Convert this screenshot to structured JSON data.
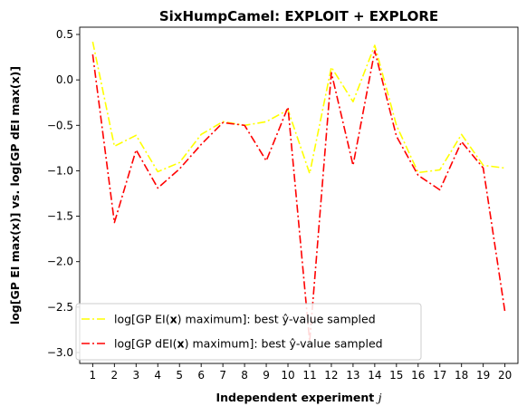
{
  "chart_data": {
    "type": "line",
    "title": "SixHumpCamel: EXPLOIT + EXPLORE",
    "xlabel": "Independent experiment j",
    "ylabel": "log[GP EI max(x)] vs. log[GP dEI max(x)]",
    "xlim": [
      0.4,
      20.6
    ],
    "ylim": [
      -3.12,
      0.58
    ],
    "xticks": [
      1,
      2,
      3,
      4,
      5,
      6,
      7,
      8,
      9,
      10,
      11,
      12,
      13,
      14,
      15,
      16,
      17,
      18,
      19,
      20
    ],
    "yticks": [
      0.5,
      0.0,
      -0.5,
      -1.0,
      -1.5,
      -2.0,
      -2.5,
      -3.0
    ],
    "ytick_labels": [
      "0.5",
      "0.0",
      "−0.5",
      "−1.0",
      "−1.5",
      "−2.0",
      "−2.5",
      "−3.0"
    ],
    "grid": false,
    "legend_position": "lower-left",
    "x": [
      1,
      2,
      3,
      4,
      5,
      6,
      7,
      8,
      9,
      10,
      11,
      12,
      13,
      14,
      15,
      16,
      17,
      18,
      19,
      20
    ],
    "series": [
      {
        "name": "log[GP EI(x) maximum]: best ŷ-value sampled",
        "color": "#ffff00",
        "style": "dashdot",
        "values": [
          0.42,
          -0.73,
          -0.61,
          -1.01,
          -0.91,
          -0.6,
          -0.46,
          -0.5,
          -0.46,
          -0.33,
          -1.03,
          0.14,
          -0.24,
          0.38,
          -0.5,
          -1.02,
          -0.99,
          -0.6,
          -0.94,
          -0.97
        ]
      },
      {
        "name": "log[GP dEI(x) maximum]: best ŷ-value sampled",
        "color": "#ff0000",
        "style": "dashdot",
        "values": [
          0.28,
          -1.57,
          -0.77,
          -1.19,
          -0.98,
          -0.71,
          -0.47,
          -0.5,
          -0.89,
          -0.3,
          -2.88,
          0.08,
          -0.94,
          0.32,
          -0.62,
          -1.05,
          -1.21,
          -0.68,
          -0.97,
          -2.55
        ]
      }
    ]
  }
}
